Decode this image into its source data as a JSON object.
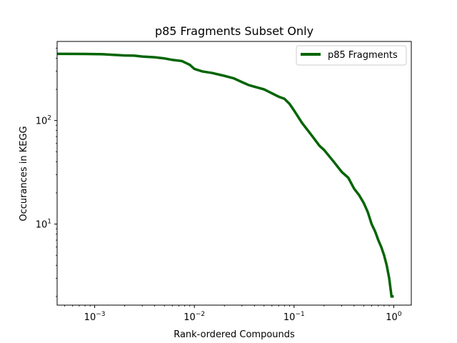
{
  "chart_data": {
    "type": "line",
    "title": "p85 Fragments Subset Only",
    "xlabel": "Rank-ordered Compounds",
    "ylabel": "Occurances in KEGG",
    "xscale": "log",
    "yscale": "log",
    "xlim": [
      0.00042,
      1.5
    ],
    "ylim": [
      1.65,
      580
    ],
    "x_ticks": [
      {
        "value": 0.001,
        "base": "10",
        "exp": "−3"
      },
      {
        "value": 0.01,
        "base": "10",
        "exp": "−2"
      },
      {
        "value": 0.1,
        "base": "10",
        "exp": "−1"
      },
      {
        "value": 1,
        "base": "10",
        "exp": "0"
      }
    ],
    "y_ticks": [
      {
        "value": 10,
        "base": "10",
        "exp": "1"
      },
      {
        "value": 100,
        "base": "10",
        "exp": "2"
      }
    ],
    "grid": false,
    "legend_position": "top-right",
    "series": [
      {
        "name": "p85 Fragments",
        "color": "#006400",
        "points": [
          [
            0.00042,
            440
          ],
          [
            0.0005,
            440
          ],
          [
            0.0008,
            439
          ],
          [
            0.0012,
            437
          ],
          [
            0.0016,
            430
          ],
          [
            0.002,
            425
          ],
          [
            0.0025,
            423
          ],
          [
            0.003,
            415
          ],
          [
            0.004,
            408
          ],
          [
            0.005,
            398
          ],
          [
            0.006,
            385
          ],
          [
            0.0075,
            375
          ],
          [
            0.009,
            345
          ],
          [
            0.01,
            315
          ],
          [
            0.012,
            298
          ],
          [
            0.015,
            288
          ],
          [
            0.02,
            270
          ],
          [
            0.025,
            255
          ],
          [
            0.03,
            235
          ],
          [
            0.035,
            220
          ],
          [
            0.04,
            212
          ],
          [
            0.05,
            200
          ],
          [
            0.06,
            183
          ],
          [
            0.07,
            170
          ],
          [
            0.08,
            162
          ],
          [
            0.09,
            145
          ],
          [
            0.1,
            125
          ],
          [
            0.12,
            95
          ],
          [
            0.15,
            72
          ],
          [
            0.18,
            57
          ],
          [
            0.2,
            52
          ],
          [
            0.25,
            40
          ],
          [
            0.3,
            32
          ],
          [
            0.35,
            28
          ],
          [
            0.4,
            22
          ],
          [
            0.45,
            19
          ],
          [
            0.5,
            16
          ],
          [
            0.55,
            13
          ],
          [
            0.6,
            10
          ],
          [
            0.65,
            8.5
          ],
          [
            0.7,
            7
          ],
          [
            0.75,
            6
          ],
          [
            0.8,
            5
          ],
          [
            0.85,
            4
          ],
          [
            0.9,
            3
          ],
          [
            0.95,
            2
          ],
          [
            1.0,
            2
          ]
        ]
      }
    ]
  }
}
